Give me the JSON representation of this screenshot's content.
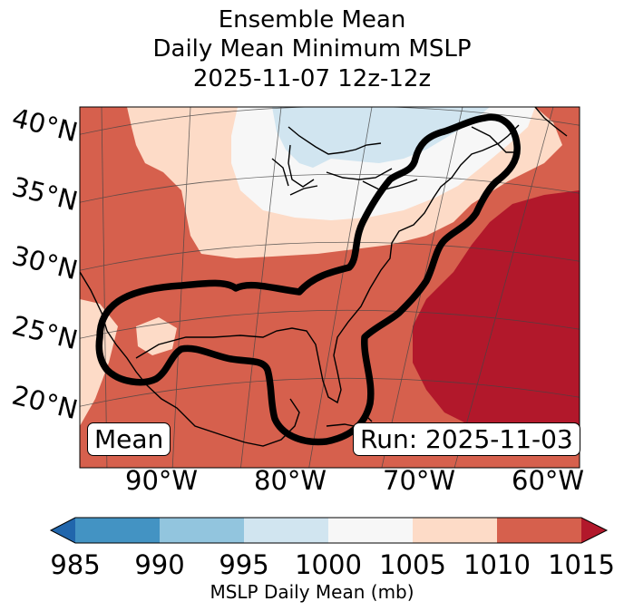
{
  "title": [
    "Ensemble Mean",
    "Daily Mean Minimum MSLP",
    "2025-11-07 12z-12z"
  ],
  "latitude_labels": [
    "40°N",
    "35°N",
    "30°N",
    "25°N",
    "20°N"
  ],
  "longitude_labels": [
    "90°W",
    "80°W",
    "70°W",
    "60°W"
  ],
  "box_left": "Mean",
  "box_right": "Run: 2025-11-03",
  "colorbar": {
    "ticks": [
      "985",
      "990",
      "995",
      "1000",
      "1005",
      "1010",
      "1015"
    ],
    "label": "MSLP Daily Mean (mb)",
    "colors": [
      "#2166ac",
      "#4393c3",
      "#92c5de",
      "#d1e5f0",
      "#f7f7f7",
      "#fddbc7",
      "#d6604d",
      "#b2182b"
    ]
  }
}
